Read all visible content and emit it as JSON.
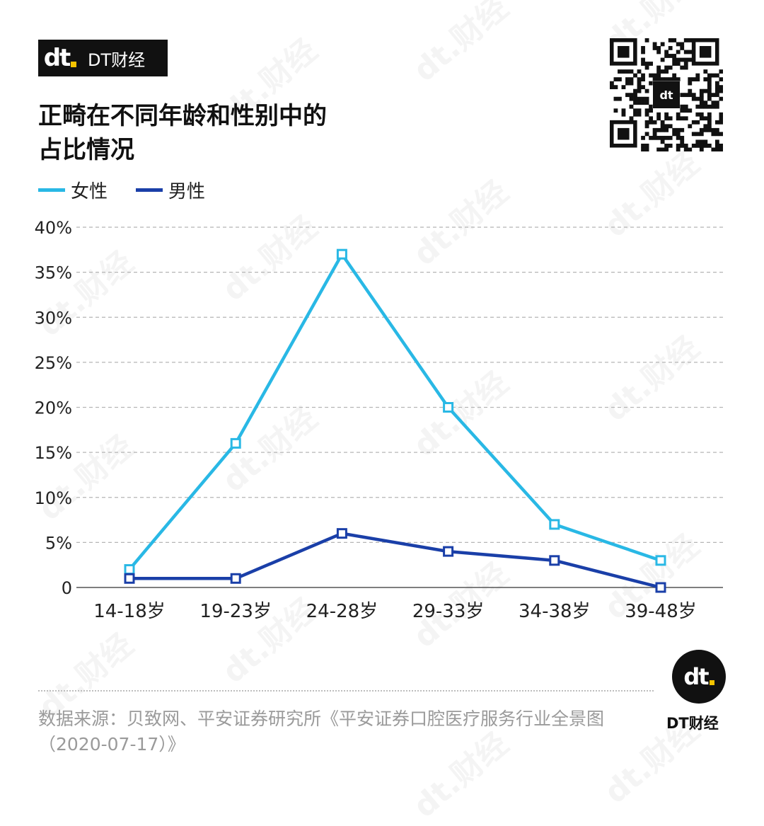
{
  "brand": {
    "name": "DT财经",
    "logo_glyph": "dt",
    "accent_color": "#f5c400"
  },
  "watermark_text": "dt.财经",
  "qr_code": {
    "icon": "qr-code-icon"
  },
  "chart_data": {
    "type": "line",
    "title": "正畸在不同年龄和性别中的占比情况",
    "title_lines": [
      "正畸在不同年龄和性别中的",
      "占比情况"
    ],
    "categories": [
      "14-18岁",
      "19-23岁",
      "24-28岁",
      "29-33岁",
      "34-38岁",
      "39-48岁"
    ],
    "series": [
      {
        "name": "女性",
        "color": "#29b8e5",
        "values": [
          2,
          16,
          37,
          20,
          7,
          3
        ]
      },
      {
        "name": "男性",
        "color": "#1a3fa8",
        "values": [
          1,
          1,
          6,
          4,
          3,
          0
        ]
      }
    ],
    "ylim": [
      0,
      40
    ],
    "yticks": [
      0,
      5,
      10,
      15,
      20,
      25,
      30,
      35,
      40
    ],
    "ytick_labels": [
      "0",
      "5%",
      "10%",
      "15%",
      "20%",
      "25%",
      "30%",
      "35%",
      "40%"
    ],
    "xlabel": "",
    "ylabel": "",
    "grid": true,
    "legend_position": "top-left",
    "marker": "square"
  },
  "source": "数据来源：贝致网、平安证券研究所《平安证券口腔医疗服务行业全景图（2020-07-17）》"
}
